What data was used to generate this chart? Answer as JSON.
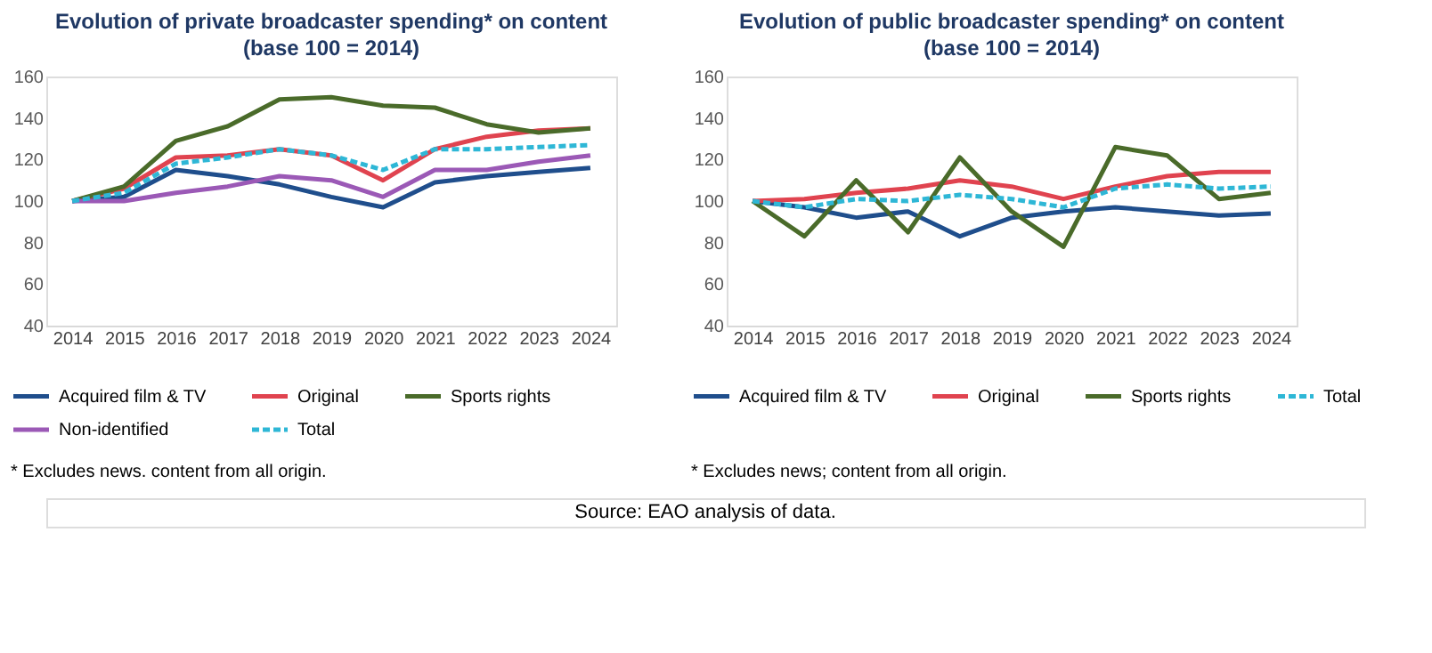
{
  "chart_data": [
    {
      "type": "line",
      "title": "Evolution of private broadcaster spending* on content",
      "subtitle": "(base 100 = 2014)",
      "categories": [
        "2014",
        "2015",
        "2016",
        "2017",
        "2018",
        "2019",
        "2020",
        "2021",
        "2022",
        "2023",
        "2024"
      ],
      "ylim": [
        40,
        160
      ],
      "yticks": [
        40,
        60,
        80,
        100,
        120,
        140,
        160
      ],
      "grid": false,
      "legend": "bottom",
      "marker": "none",
      "series": [
        {
          "name": "Acquired film & TV",
          "color": "#1f4e8c",
          "line_style": "solid",
          "values": [
            100,
            102,
            115,
            112,
            108,
            102,
            97,
            109,
            112,
            114,
            116
          ]
        },
        {
          "name": "Original",
          "color": "#e0434f",
          "line_style": "solid",
          "values": [
            100,
            106,
            121,
            122,
            125,
            122,
            110,
            125,
            131,
            134,
            135
          ]
        },
        {
          "name": "Sports rights",
          "color": "#4a6b2a",
          "line_style": "solid",
          "values": [
            100,
            107,
            129,
            136,
            149,
            150,
            146,
            145,
            137,
            133,
            135
          ]
        },
        {
          "name": "Non-identified",
          "color": "#9b59b6",
          "line_style": "solid",
          "values": [
            100,
            100,
            104,
            107,
            112,
            110,
            102,
            115,
            115,
            119,
            122
          ]
        },
        {
          "name": "Total",
          "color": "#2eb7d6",
          "line_style": "dashed",
          "values": [
            100,
            104,
            118,
            121,
            125,
            122,
            115,
            125,
            125,
            126,
            127
          ]
        }
      ],
      "annotations": [
        "* Excludes news. content from all origin."
      ]
    },
    {
      "type": "line",
      "title": "Evolution of public broadcaster spending* on content",
      "subtitle": "(base 100 = 2014)",
      "categories": [
        "2014",
        "2015",
        "2016",
        "2017",
        "2018",
        "2019",
        "2020",
        "2021",
        "2022",
        "2023",
        "2024"
      ],
      "ylim": [
        40,
        160
      ],
      "yticks": [
        40,
        60,
        80,
        100,
        120,
        140,
        160
      ],
      "grid": false,
      "legend": "bottom",
      "marker": "none",
      "series": [
        {
          "name": "Acquired film & TV",
          "color": "#1f4e8c",
          "line_style": "solid",
          "values": [
            100,
            97,
            92,
            95,
            83,
            92,
            95,
            97,
            95,
            93,
            94
          ]
        },
        {
          "name": "Original",
          "color": "#e0434f",
          "line_style": "solid",
          "values": [
            100,
            101,
            104,
            106,
            110,
            107,
            101,
            107,
            112,
            114,
            114
          ]
        },
        {
          "name": "Sports rights",
          "color": "#4a6b2a",
          "line_style": "solid",
          "values": [
            100,
            83,
            110,
            85,
            121,
            95,
            78,
            126,
            122,
            101,
            104
          ]
        },
        {
          "name": "Total",
          "color": "#2eb7d6",
          "line_style": "dashed",
          "values": [
            100,
            97,
            101,
            100,
            103,
            101,
            97,
            106,
            108,
            106,
            107
          ]
        }
      ],
      "annotations": [
        "* Excludes news; content from all origin.",
        "Source: EAO analysis of data."
      ]
    }
  ]
}
